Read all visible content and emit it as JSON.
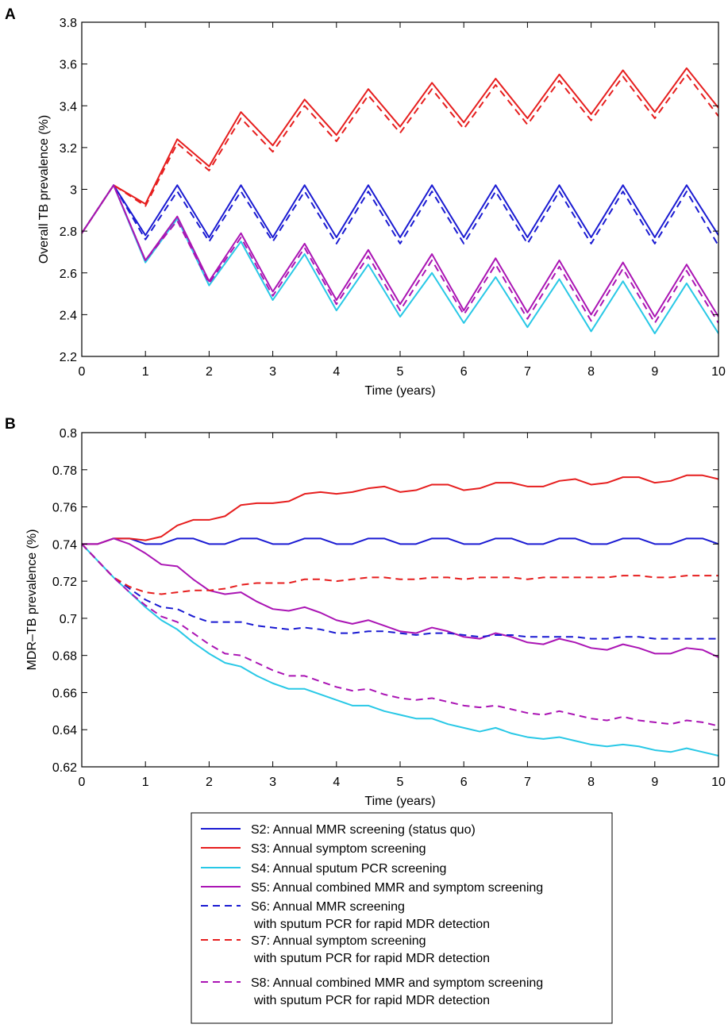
{
  "chart_data": [
    {
      "panel_label": "A",
      "type": "line",
      "xlabel": "Time (years)",
      "ylabel": "Overall TB prevalence (%)",
      "xlim": [
        0,
        10
      ],
      "ylim": [
        2.2,
        3.8
      ],
      "xticks": [
        0,
        1,
        2,
        3,
        4,
        5,
        6,
        7,
        8,
        9,
        10
      ],
      "yticks": [
        2.2,
        2.4,
        2.6,
        2.8,
        3,
        3.2,
        3.4,
        3.6,
        3.8
      ],
      "ytick_labels": [
        "2.2",
        "2.4",
        "2.6",
        "2.8",
        "3",
        "3.2",
        "3.4",
        "3.6",
        "3.8"
      ],
      "grid": false,
      "x": [
        0,
        0.5,
        1,
        1.5,
        2,
        2.5,
        3,
        3.5,
        4,
        4.5,
        5,
        5.5,
        6,
        6.5,
        7,
        7.5,
        8,
        8.5,
        9,
        9.5,
        10
      ],
      "series": [
        {
          "name": "S2",
          "values": [
            2.79,
            3.02,
            2.78,
            3.02,
            2.77,
            3.02,
            2.77,
            3.02,
            2.77,
            3.02,
            2.77,
            3.02,
            2.77,
            3.02,
            2.77,
            3.02,
            2.77,
            3.02,
            2.77,
            3.02,
            2.78
          ]
        },
        {
          "name": "S3",
          "values": [
            2.79,
            3.02,
            2.93,
            3.24,
            3.11,
            3.37,
            3.21,
            3.43,
            3.26,
            3.48,
            3.3,
            3.51,
            3.32,
            3.53,
            3.34,
            3.55,
            3.36,
            3.57,
            3.37,
            3.58,
            3.39
          ]
        },
        {
          "name": "S4",
          "values": [
            2.79,
            3.02,
            2.65,
            2.86,
            2.54,
            2.75,
            2.47,
            2.69,
            2.42,
            2.64,
            2.39,
            2.6,
            2.36,
            2.58,
            2.34,
            2.57,
            2.32,
            2.56,
            2.31,
            2.55,
            2.31
          ]
        },
        {
          "name": "S5",
          "values": [
            2.79,
            3.02,
            2.66,
            2.87,
            2.56,
            2.79,
            2.51,
            2.74,
            2.47,
            2.71,
            2.45,
            2.69,
            2.42,
            2.67,
            2.41,
            2.66,
            2.4,
            2.65,
            2.39,
            2.64,
            2.39
          ]
        },
        {
          "name": "S6",
          "values": [
            2.79,
            3.02,
            2.76,
            2.99,
            2.75,
            2.99,
            2.75,
            2.99,
            2.74,
            2.99,
            2.74,
            2.99,
            2.74,
            2.99,
            2.74,
            2.99,
            2.74,
            2.99,
            2.74,
            2.99,
            2.73
          ]
        },
        {
          "name": "S7",
          "values": [
            2.79,
            3.02,
            2.92,
            3.22,
            3.09,
            3.34,
            3.18,
            3.4,
            3.23,
            3.45,
            3.27,
            3.48,
            3.29,
            3.5,
            3.31,
            3.52,
            3.33,
            3.54,
            3.34,
            3.55,
            3.35
          ]
        },
        {
          "name": "S8",
          "values": [
            2.79,
            3.02,
            2.66,
            2.85,
            2.55,
            2.77,
            2.49,
            2.72,
            2.45,
            2.68,
            2.42,
            2.66,
            2.4,
            2.64,
            2.38,
            2.63,
            2.37,
            2.62,
            2.36,
            2.61,
            2.36
          ]
        }
      ]
    },
    {
      "panel_label": "B",
      "type": "line",
      "xlabel": "Time (years)",
      "ylabel": "MDR–TB prevalence (%)",
      "xlim": [
        0,
        10
      ],
      "ylim": [
        0.62,
        0.8
      ],
      "xticks": [
        0,
        1,
        2,
        3,
        4,
        5,
        6,
        7,
        8,
        9,
        10
      ],
      "yticks": [
        0.62,
        0.64,
        0.66,
        0.68,
        0.7,
        0.72,
        0.74,
        0.76,
        0.78,
        0.8
      ],
      "ytick_labels": [
        "0.62",
        "0.64",
        "0.66",
        "0.68",
        "0.7",
        "0.72",
        "0.74",
        "0.76",
        "0.78",
        "0.8"
      ],
      "grid": false,
      "x": [
        0,
        0.25,
        0.5,
        0.75,
        1,
        1.25,
        1.5,
        1.75,
        2,
        2.25,
        2.5,
        2.75,
        3,
        3.25,
        3.5,
        3.75,
        4,
        4.25,
        4.5,
        4.75,
        5,
        5.25,
        5.5,
        5.75,
        6,
        6.25,
        6.5,
        6.75,
        7,
        7.25,
        7.5,
        7.75,
        8,
        8.25,
        8.5,
        8.75,
        9,
        9.25,
        9.5,
        9.75,
        10
      ],
      "series": [
        {
          "name": "S2",
          "values": [
            0.74,
            0.74,
            0.743,
            0.743,
            0.74,
            0.74,
            0.743,
            0.743,
            0.74,
            0.74,
            0.743,
            0.743,
            0.74,
            0.74,
            0.743,
            0.743,
            0.74,
            0.74,
            0.743,
            0.743,
            0.74,
            0.74,
            0.743,
            0.743,
            0.74,
            0.74,
            0.743,
            0.743,
            0.74,
            0.74,
            0.743,
            0.743,
            0.74,
            0.74,
            0.743,
            0.743,
            0.74,
            0.74,
            0.743,
            0.743,
            0.74
          ]
        },
        {
          "name": "S3",
          "values": [
            0.74,
            0.74,
            0.743,
            0.743,
            0.742,
            0.744,
            0.75,
            0.753,
            0.753,
            0.755,
            0.761,
            0.762,
            0.762,
            0.763,
            0.767,
            0.768,
            0.767,
            0.768,
            0.77,
            0.771,
            0.768,
            0.769,
            0.772,
            0.772,
            0.769,
            0.77,
            0.773,
            0.773,
            0.771,
            0.771,
            0.774,
            0.775,
            0.772,
            0.773,
            0.776,
            0.776,
            0.773,
            0.774,
            0.777,
            0.777,
            0.775
          ]
        },
        {
          "name": "S4",
          "values": [
            0.74,
            0.731,
            0.722,
            0.714,
            0.706,
            0.699,
            0.694,
            0.687,
            0.681,
            0.676,
            0.674,
            0.669,
            0.665,
            0.662,
            0.662,
            0.659,
            0.656,
            0.653,
            0.653,
            0.65,
            0.648,
            0.646,
            0.646,
            0.643,
            0.641,
            0.639,
            0.641,
            0.638,
            0.636,
            0.635,
            0.636,
            0.634,
            0.632,
            0.631,
            0.632,
            0.631,
            0.629,
            0.628,
            0.63,
            0.628,
            0.626
          ]
        },
        {
          "name": "S5",
          "values": [
            0.74,
            0.74,
            0.743,
            0.74,
            0.735,
            0.729,
            0.728,
            0.721,
            0.715,
            0.713,
            0.714,
            0.709,
            0.705,
            0.704,
            0.706,
            0.703,
            0.699,
            0.697,
            0.699,
            0.696,
            0.693,
            0.692,
            0.695,
            0.693,
            0.69,
            0.689,
            0.692,
            0.69,
            0.687,
            0.686,
            0.689,
            0.687,
            0.684,
            0.683,
            0.686,
            0.684,
            0.681,
            0.681,
            0.684,
            0.683,
            0.679
          ]
        },
        {
          "name": "S6",
          "values": [
            0.74,
            0.731,
            0.722,
            0.716,
            0.71,
            0.706,
            0.705,
            0.701,
            0.698,
            0.698,
            0.698,
            0.696,
            0.695,
            0.694,
            0.695,
            0.694,
            0.692,
            0.692,
            0.693,
            0.693,
            0.692,
            0.691,
            0.692,
            0.692,
            0.691,
            0.69,
            0.691,
            0.691,
            0.69,
            0.69,
            0.69,
            0.69,
            0.689,
            0.689,
            0.69,
            0.69,
            0.689,
            0.689,
            0.689,
            0.689,
            0.689
          ]
        },
        {
          "name": "S7",
          "values": [
            0.74,
            0.731,
            0.722,
            0.717,
            0.714,
            0.713,
            0.714,
            0.715,
            0.715,
            0.716,
            0.718,
            0.719,
            0.719,
            0.719,
            0.721,
            0.721,
            0.72,
            0.721,
            0.722,
            0.722,
            0.721,
            0.721,
            0.722,
            0.722,
            0.721,
            0.722,
            0.722,
            0.722,
            0.721,
            0.722,
            0.722,
            0.722,
            0.722,
            0.722,
            0.723,
            0.723,
            0.722,
            0.722,
            0.723,
            0.723,
            0.723
          ]
        },
        {
          "name": "S8",
          "values": [
            0.74,
            0.731,
            0.722,
            0.714,
            0.707,
            0.701,
            0.698,
            0.692,
            0.686,
            0.681,
            0.68,
            0.676,
            0.672,
            0.669,
            0.669,
            0.666,
            0.663,
            0.661,
            0.662,
            0.659,
            0.657,
            0.656,
            0.657,
            0.655,
            0.653,
            0.652,
            0.653,
            0.651,
            0.649,
            0.648,
            0.65,
            0.648,
            0.646,
            0.645,
            0.647,
            0.645,
            0.644,
            0.643,
            0.645,
            0.644,
            0.642
          ]
        }
      ]
    }
  ],
  "legend": {
    "placement": "bottom",
    "entries": [
      {
        "id": "S2",
        "lines": [
          "S2: Annual MMR screening (status quo)"
        ],
        "color": "#1a1ad2",
        "dash": "solid"
      },
      {
        "id": "S3",
        "lines": [
          "S3: Annual symptom screening"
        ],
        "color": "#e61e1e",
        "dash": "solid"
      },
      {
        "id": "S4",
        "lines": [
          "S4: Annual sputum PCR screening"
        ],
        "color": "#28c8e6",
        "dash": "solid"
      },
      {
        "id": "S5",
        "lines": [
          "S5: Annual combined MMR and symptom screening"
        ],
        "color": "#aa14b4",
        "dash": "solid"
      },
      {
        "id": "S6",
        "lines": [
          "S6: Annual MMR screening",
          "with sputum PCR for rapid MDR detection"
        ],
        "color": "#1a1ad2",
        "dash": "dashed"
      },
      {
        "id": "S7",
        "lines": [
          "S7: Annual symptom screening",
          "with sputum PCR for rapid MDR detection"
        ],
        "color": "#e61e1e",
        "dash": "dashed"
      },
      {
        "id": "S8",
        "lines": [
          "S8: Annual combined MMR and symptom screening",
          "with sputum PCR for rapid MDR detection"
        ],
        "color": "#aa14b4",
        "dash": "dashed"
      }
    ]
  }
}
